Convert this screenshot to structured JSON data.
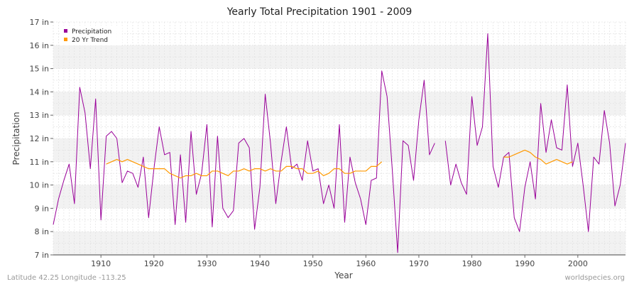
{
  "chart_data": {
    "type": "line",
    "title": "Yearly Total Precipitation 1901 - 2009",
    "xlabel": "Year",
    "ylabel": "Precipitation",
    "xlim": [
      1901,
      2009
    ],
    "ylim": [
      7,
      17
    ],
    "x_ticks": [
      1910,
      1920,
      1930,
      1940,
      1950,
      1960,
      1970,
      1980,
      1990,
      2000
    ],
    "y_ticks": [
      7,
      8,
      9,
      10,
      11,
      12,
      13,
      14,
      15,
      16,
      17
    ],
    "y_tick_labels": [
      "7 in",
      "8 in",
      "9 in",
      "10 in",
      "11 in",
      "12 in",
      "13 in",
      "14 in",
      "15 in",
      "16 in",
      "17 in"
    ],
    "grid": true,
    "legend_position": "top-left",
    "series": [
      {
        "name": "Precipitation",
        "color": "#990099",
        "points": [
          [
            1901,
            8.3
          ],
          [
            1902,
            9.4
          ],
          [
            1903,
            10.2
          ],
          [
            1904,
            10.9
          ],
          [
            1905,
            9.2
          ],
          [
            1906,
            14.2
          ],
          [
            1907,
            13.1
          ],
          [
            1908,
            10.7
          ],
          [
            1909,
            13.7
          ],
          [
            1910,
            8.5
          ],
          [
            1911,
            12.1
          ],
          [
            1912,
            12.3
          ],
          [
            1913,
            12.0
          ],
          [
            1914,
            10.1
          ],
          [
            1915,
            10.6
          ],
          [
            1916,
            10.5
          ],
          [
            1917,
            9.9
          ],
          [
            1918,
            11.2
          ],
          [
            1919,
            8.6
          ],
          [
            1920,
            10.7
          ],
          [
            1921,
            12.5
          ],
          [
            1922,
            11.3
          ],
          [
            1923,
            11.4
          ],
          [
            1924,
            8.3
          ],
          [
            1925,
            11.3
          ],
          [
            1926,
            8.4
          ],
          [
            1927,
            12.3
          ],
          [
            1928,
            9.6
          ],
          [
            1929,
            10.5
          ],
          [
            1930,
            12.6
          ],
          [
            1931,
            8.2
          ],
          [
            1932,
            12.1
          ],
          [
            1933,
            9.0
          ],
          [
            1934,
            8.6
          ],
          [
            1935,
            8.9
          ],
          [
            1936,
            11.8
          ],
          [
            1937,
            12.0
          ],
          [
            1938,
            11.6
          ],
          [
            1939,
            8.1
          ],
          [
            1940,
            9.9
          ],
          [
            1941,
            13.9
          ],
          [
            1942,
            11.8
          ],
          [
            1943,
            9.2
          ],
          [
            1944,
            11.0
          ],
          [
            1945,
            12.5
          ],
          [
            1946,
            10.7
          ],
          [
            1947,
            10.9
          ],
          [
            1948,
            10.2
          ],
          [
            1949,
            11.9
          ],
          [
            1950,
            10.6
          ],
          [
            1951,
            10.7
          ],
          [
            1952,
            9.2
          ],
          [
            1953,
            10.0
          ],
          [
            1954,
            9.0
          ],
          [
            1955,
            12.6
          ],
          [
            1956,
            8.4
          ],
          [
            1957,
            11.2
          ],
          [
            1958,
            10.1
          ],
          [
            1959,
            9.4
          ],
          [
            1960,
            8.3
          ],
          [
            1961,
            10.2
          ],
          [
            1962,
            10.3
          ],
          [
            1963,
            14.9
          ],
          [
            1964,
            13.8
          ],
          [
            1965,
            10.6
          ],
          [
            1966,
            7.1
          ],
          [
            1967,
            11.9
          ],
          [
            1968,
            11.7
          ],
          [
            1969,
            10.2
          ],
          [
            1970,
            12.8
          ],
          [
            1971,
            14.5
          ],
          [
            1972,
            11.3
          ],
          [
            1973,
            11.8
          ],
          [
            1974,
            null
          ],
          [
            1975,
            11.9
          ],
          [
            1976,
            10.0
          ],
          [
            1977,
            10.9
          ],
          [
            1978,
            10.1
          ],
          [
            1979,
            9.6
          ],
          [
            1980,
            13.8
          ],
          [
            1981,
            11.7
          ],
          [
            1982,
            12.5
          ],
          [
            1983,
            16.5
          ],
          [
            1984,
            10.8
          ],
          [
            1985,
            9.9
          ],
          [
            1986,
            11.2
          ],
          [
            1987,
            11.4
          ],
          [
            1988,
            8.6
          ],
          [
            1989,
            8.0
          ],
          [
            1990,
            9.9
          ],
          [
            1991,
            11.0
          ],
          [
            1992,
            9.4
          ],
          [
            1993,
            13.5
          ],
          [
            1994,
            11.4
          ],
          [
            1995,
            12.8
          ],
          [
            1996,
            11.6
          ],
          [
            1997,
            11.5
          ],
          [
            1998,
            14.3
          ],
          [
            1999,
            10.8
          ],
          [
            2000,
            11.8
          ],
          [
            2001,
            10.0
          ],
          [
            2002,
            8.0
          ],
          [
            2003,
            11.2
          ],
          [
            2004,
            10.9
          ],
          [
            2005,
            13.2
          ],
          [
            2006,
            11.8
          ],
          [
            2007,
            9.1
          ],
          [
            2008,
            10.0
          ],
          [
            2009,
            11.8
          ]
        ]
      },
      {
        "name": "20 Yr Trend",
        "color": "#ff9900",
        "points": [
          [
            1911,
            10.9
          ],
          [
            1912,
            11.0
          ],
          [
            1913,
            11.1
          ],
          [
            1914,
            11.0
          ],
          [
            1915,
            11.1
          ],
          [
            1916,
            11.0
          ],
          [
            1917,
            10.9
          ],
          [
            1918,
            10.8
          ],
          [
            1919,
            10.7
          ],
          [
            1920,
            10.7
          ],
          [
            1921,
            10.7
          ],
          [
            1922,
            10.7
          ],
          [
            1923,
            10.5
          ],
          [
            1924,
            10.4
          ],
          [
            1925,
            10.3
          ],
          [
            1926,
            10.4
          ],
          [
            1927,
            10.4
          ],
          [
            1928,
            10.5
          ],
          [
            1929,
            10.4
          ],
          [
            1930,
            10.4
          ],
          [
            1931,
            10.6
          ],
          [
            1932,
            10.6
          ],
          [
            1933,
            10.5
          ],
          [
            1934,
            10.4
          ],
          [
            1935,
            10.6
          ],
          [
            1936,
            10.6
          ],
          [
            1937,
            10.7
          ],
          [
            1938,
            10.6
          ],
          [
            1939,
            10.7
          ],
          [
            1940,
            10.7
          ],
          [
            1941,
            10.6
          ],
          [
            1942,
            10.7
          ],
          [
            1943,
            10.6
          ],
          [
            1944,
            10.6
          ],
          [
            1945,
            10.8
          ],
          [
            1946,
            10.8
          ],
          [
            1947,
            10.7
          ],
          [
            1948,
            10.7
          ],
          [
            1949,
            10.5
          ],
          [
            1950,
            10.5
          ],
          [
            1951,
            10.6
          ],
          [
            1952,
            10.4
          ],
          [
            1953,
            10.5
          ],
          [
            1954,
            10.7
          ],
          [
            1955,
            10.7
          ],
          [
            1956,
            10.5
          ],
          [
            1957,
            10.5
          ],
          [
            1958,
            10.6
          ],
          [
            1959,
            10.6
          ],
          [
            1960,
            10.6
          ],
          [
            1961,
            10.8
          ],
          [
            1962,
            10.8
          ],
          [
            1963,
            11.0
          ],
          [
            1986,
            11.2
          ],
          [
            1987,
            11.2
          ],
          [
            1988,
            11.3
          ],
          [
            1989,
            11.4
          ],
          [
            1990,
            11.5
          ],
          [
            1991,
            11.4
          ],
          [
            1992,
            11.2
          ],
          [
            1993,
            11.1
          ],
          [
            1994,
            10.9
          ],
          [
            1995,
            11.0
          ],
          [
            1996,
            11.1
          ],
          [
            1997,
            11.0
          ],
          [
            1998,
            10.9
          ],
          [
            1999,
            11.0
          ]
        ]
      }
    ]
  },
  "footer": {
    "left": "Latitude 42.25 Longitude -113.25",
    "right": "worldspecies.org"
  }
}
